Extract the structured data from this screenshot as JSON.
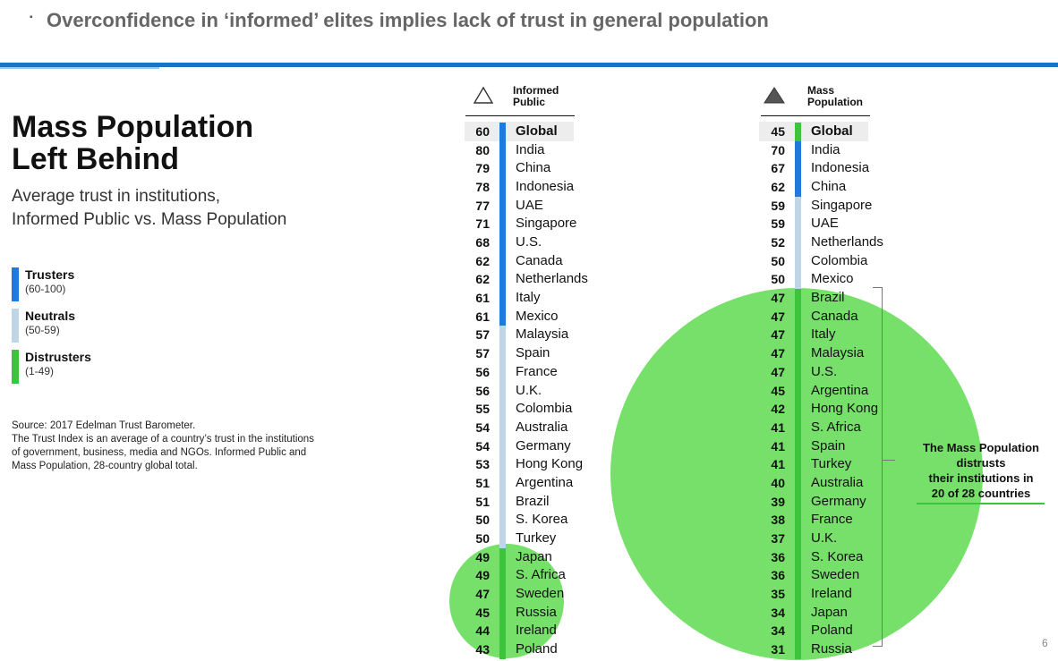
{
  "header": {
    "bullet": "▪",
    "title": "Overconfidence in ‘informed’ elites implies lack of trust in general population"
  },
  "main_title": {
    "line1": "Mass Population",
    "line2": "Left Behind"
  },
  "subtitle": {
    "line1": "Average trust in institutions,",
    "line2": "Informed Public vs. Mass Population"
  },
  "colors": {
    "truster": "#1f7ae0",
    "neutral": "#bfd6e6",
    "distruster": "#3cc43c",
    "circle": "#77e06a"
  },
  "legend": [
    {
      "label": "Trusters",
      "range": "(60-100)",
      "kind": "truster"
    },
    {
      "label": "Neutrals",
      "range": "(50-59)",
      "kind": "neutral"
    },
    {
      "label": "Distrusters",
      "range": "(1-49)",
      "kind": "distruster"
    }
  ],
  "source": {
    "line1": "Source: 2017 Edelman Trust Barometer.",
    "line2": "The Trust Index is an average of a country’s trust in the institutions of government, business, media and NGOs. Informed Public and Mass Population, 28-country global total."
  },
  "informed": {
    "header_line1": "Informed",
    "header_line2": "Public",
    "icon": "outline-triangle-icon",
    "rows": [
      {
        "value": "60",
        "name": "Global",
        "kind": "truster"
      },
      {
        "value": "80",
        "name": "India",
        "kind": "truster"
      },
      {
        "value": "79",
        "name": "China",
        "kind": "truster"
      },
      {
        "value": "78",
        "name": "Indonesia",
        "kind": "truster"
      },
      {
        "value": "77",
        "name": "UAE",
        "kind": "truster"
      },
      {
        "value": "71",
        "name": "Singapore",
        "kind": "truster"
      },
      {
        "value": "68",
        "name": "U.S.",
        "kind": "truster"
      },
      {
        "value": "62",
        "name": "Canada",
        "kind": "truster"
      },
      {
        "value": "62",
        "name": "Netherlands",
        "kind": "truster"
      },
      {
        "value": "61",
        "name": "Italy",
        "kind": "truster"
      },
      {
        "value": "61",
        "name": "Mexico",
        "kind": "truster"
      },
      {
        "value": "57",
        "name": "Malaysia",
        "kind": "neutral"
      },
      {
        "value": "57",
        "name": "Spain",
        "kind": "neutral"
      },
      {
        "value": "56",
        "name": "France",
        "kind": "neutral"
      },
      {
        "value": "56",
        "name": "U.K.",
        "kind": "neutral"
      },
      {
        "value": "55",
        "name": "Colombia",
        "kind": "neutral"
      },
      {
        "value": "54",
        "name": "Australia",
        "kind": "neutral"
      },
      {
        "value": "54",
        "name": "Germany",
        "kind": "neutral"
      },
      {
        "value": "53",
        "name": "Hong Kong",
        "kind": "neutral"
      },
      {
        "value": "51",
        "name": "Argentina",
        "kind": "neutral"
      },
      {
        "value": "51",
        "name": "Brazil",
        "kind": "neutral"
      },
      {
        "value": "50",
        "name": "S. Korea",
        "kind": "neutral"
      },
      {
        "value": "50",
        "name": "Turkey",
        "kind": "neutral"
      },
      {
        "value": "49",
        "name": "Japan",
        "kind": "distruster"
      },
      {
        "value": "49",
        "name": "S. Africa",
        "kind": "distruster"
      },
      {
        "value": "47",
        "name": "Sweden",
        "kind": "distruster"
      },
      {
        "value": "45",
        "name": "Russia",
        "kind": "distruster"
      },
      {
        "value": "44",
        "name": "Ireland",
        "kind": "distruster"
      },
      {
        "value": "43",
        "name": "Poland",
        "kind": "distruster"
      }
    ]
  },
  "mass": {
    "header_line1": "Mass",
    "header_line2": "Population",
    "icon": "filled-triangle-icon",
    "rows": [
      {
        "value": "45",
        "name": "Global",
        "kind": "distruster"
      },
      {
        "value": "70",
        "name": "India",
        "kind": "truster"
      },
      {
        "value": "67",
        "name": "Indonesia",
        "kind": "truster"
      },
      {
        "value": "62",
        "name": "China",
        "kind": "truster"
      },
      {
        "value": "59",
        "name": "Singapore",
        "kind": "neutral"
      },
      {
        "value": "59",
        "name": "UAE",
        "kind": "neutral"
      },
      {
        "value": "52",
        "name": "Netherlands",
        "kind": "neutral"
      },
      {
        "value": "50",
        "name": "Colombia",
        "kind": "neutral"
      },
      {
        "value": "50",
        "name": "Mexico",
        "kind": "neutral"
      },
      {
        "value": "47",
        "name": "Brazil",
        "kind": "distruster"
      },
      {
        "value": "47",
        "name": "Canada",
        "kind": "distruster"
      },
      {
        "value": "47",
        "name": "Italy",
        "kind": "distruster"
      },
      {
        "value": "47",
        "name": "Malaysia",
        "kind": "distruster"
      },
      {
        "value": "47",
        "name": "U.S.",
        "kind": "distruster"
      },
      {
        "value": "45",
        "name": "Argentina",
        "kind": "distruster"
      },
      {
        "value": "42",
        "name": "Hong Kong",
        "kind": "distruster"
      },
      {
        "value": "41",
        "name": "S. Africa",
        "kind": "distruster"
      },
      {
        "value": "41",
        "name": "Spain",
        "kind": "distruster"
      },
      {
        "value": "41",
        "name": "Turkey",
        "kind": "distruster"
      },
      {
        "value": "40",
        "name": "Australia",
        "kind": "distruster"
      },
      {
        "value": "39",
        "name": "Germany",
        "kind": "distruster"
      },
      {
        "value": "38",
        "name": "France",
        "kind": "distruster"
      },
      {
        "value": "37",
        "name": "U.K.",
        "kind": "distruster"
      },
      {
        "value": "36",
        "name": "S. Korea",
        "kind": "distruster"
      },
      {
        "value": "36",
        "name": "Sweden",
        "kind": "distruster"
      },
      {
        "value": "35",
        "name": "Ireland",
        "kind": "distruster"
      },
      {
        "value": "34",
        "name": "Japan",
        "kind": "distruster"
      },
      {
        "value": "34",
        "name": "Poland",
        "kind": "distruster"
      },
      {
        "value": "31",
        "name": "Russia",
        "kind": "distruster"
      }
    ]
  },
  "callout": {
    "line1": "The Mass Population",
    "line2": "distrusts",
    "line3": "their institutions in",
    "line4": "20 of 28 countries"
  },
  "page_number": "6"
}
